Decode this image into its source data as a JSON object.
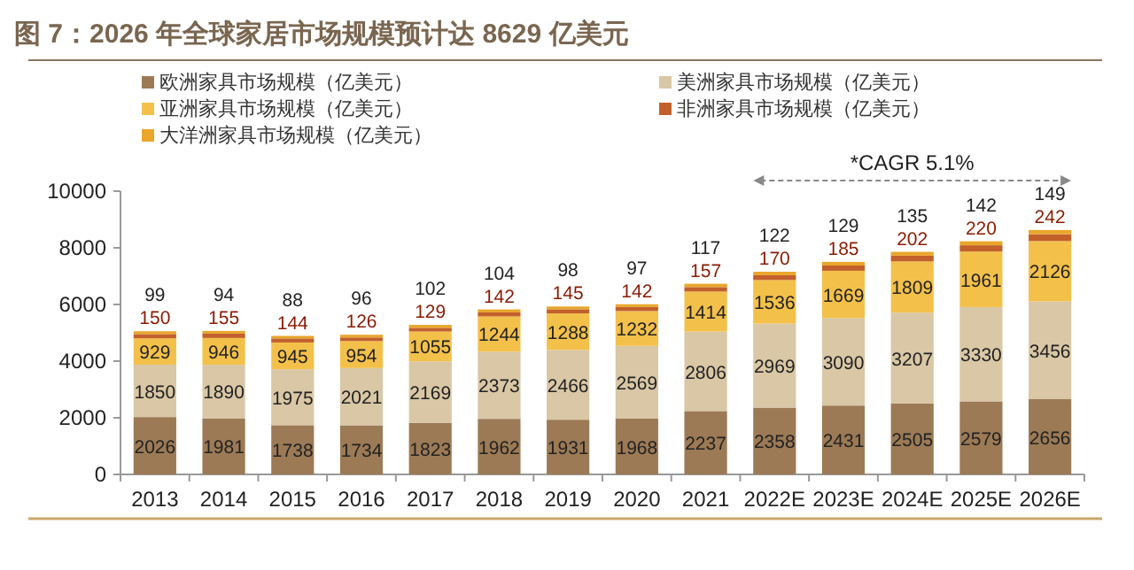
{
  "chart_data": {
    "type": "bar",
    "stacked": true,
    "title": "图 7：2026 年全球家居市场规模预计达 8629 亿美元",
    "categories": [
      "2013",
      "2014",
      "2015",
      "2016",
      "2017",
      "2018",
      "2019",
      "2020",
      "2021",
      "2022E",
      "2023E",
      "2024E",
      "2025E",
      "2026E"
    ],
    "series": [
      {
        "name": "欧洲家具市场规模（亿美元）",
        "color": "#9c7a55",
        "values": [
          2026,
          1981,
          1738,
          1734,
          1823,
          1962,
          1931,
          1968,
          2237,
          2358,
          2431,
          2505,
          2579,
          2656
        ]
      },
      {
        "name": "美洲家具市场规模（亿美元）",
        "color": "#d9c7a5",
        "values": [
          1850,
          1890,
          1975,
          2021,
          2169,
          2373,
          2466,
          2569,
          2806,
          2969,
          3090,
          3207,
          3330,
          3456
        ]
      },
      {
        "name": "亚洲家具市场规模（亿美元）",
        "color": "#f3c04a",
        "values": [
          929,
          946,
          945,
          954,
          1055,
          1244,
          1288,
          1232,
          1414,
          1536,
          1669,
          1809,
          1961,
          2126
        ]
      },
      {
        "name": "非洲家具市场规模（亿美元）",
        "color": "#c2602c",
        "values": [
          150,
          155,
          144,
          126,
          129,
          142,
          145,
          142,
          157,
          170,
          185,
          202,
          220,
          242
        ]
      },
      {
        "name": "大洋洲家具市场规模（亿美元）",
        "color": "#e9a62a",
        "values": [
          99,
          94,
          88,
          96,
          102,
          104,
          98,
          97,
          117,
          122,
          129,
          135,
          142,
          149
        ]
      }
    ],
    "ylim": [
      0,
      10000
    ],
    "yticks": [
      0,
      2000,
      4000,
      6000,
      8000,
      10000
    ],
    "data_labels": true,
    "legend": "top",
    "grid": false,
    "annotations": [
      "*CAGR 5.1%"
    ]
  }
}
